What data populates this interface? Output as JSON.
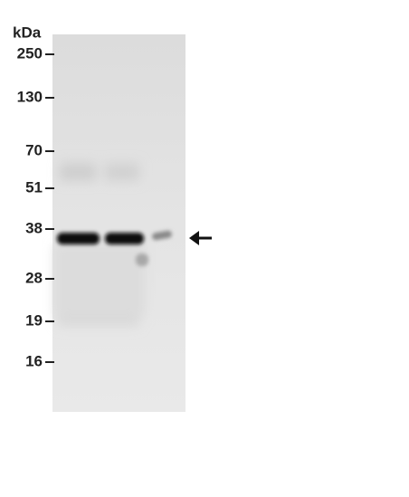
{
  "unit_label": "kDa",
  "markers": [
    "250",
    "130",
    "70",
    "51",
    "38",
    "28",
    "19",
    "16"
  ]
}
